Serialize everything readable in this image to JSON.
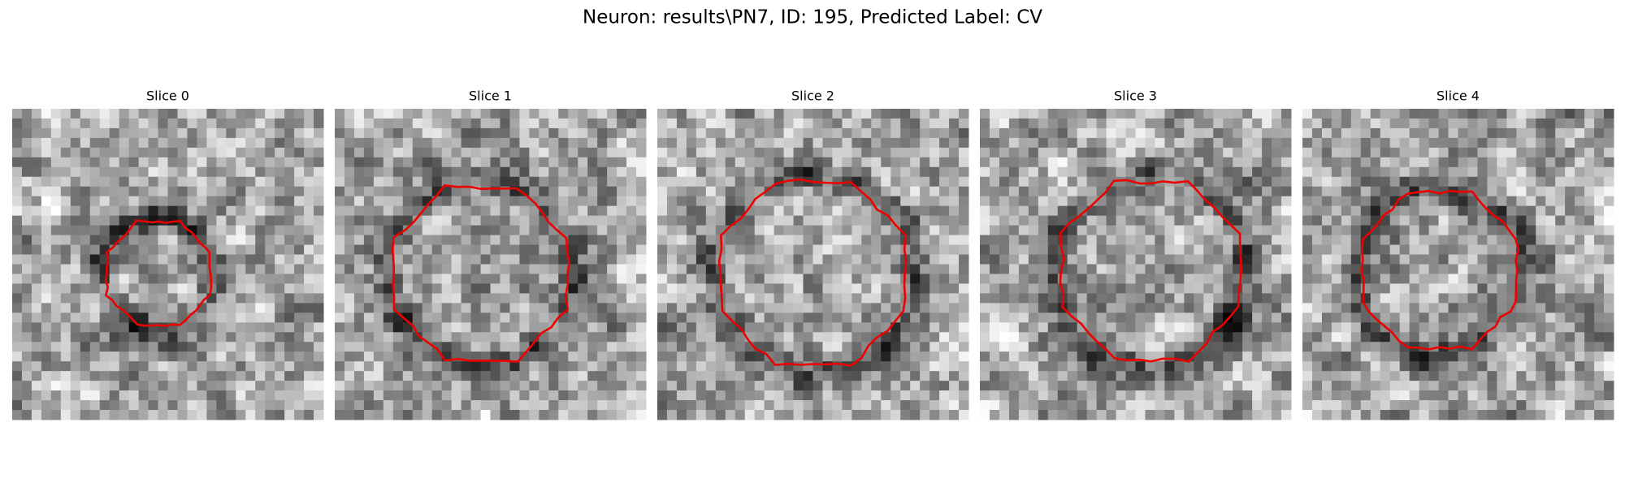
{
  "title": "Neuron: results\\PN7, ID: 195, Predicted Label: CV",
  "panels": [
    {
      "title": "Slice 0"
    },
    {
      "title": "Slice 1"
    },
    {
      "title": "Slice 2"
    },
    {
      "title": "Slice 3"
    },
    {
      "title": "Slice 4"
    }
  ]
}
